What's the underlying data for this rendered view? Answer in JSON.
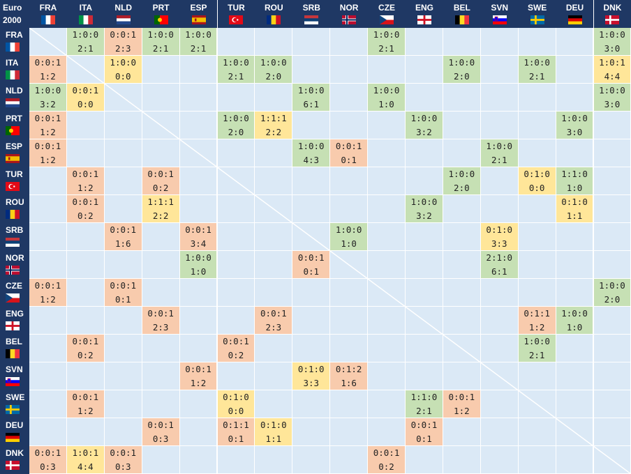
{
  "corner": {
    "line1": "Euro",
    "line2": "2000"
  },
  "teams": [
    {
      "code": "FRA",
      "flag": "fra-flag"
    },
    {
      "code": "ITA",
      "flag": "ita-flag"
    },
    {
      "code": "NLD",
      "flag": "nld-flag"
    },
    {
      "code": "PRT",
      "flag": "prt-flag"
    },
    {
      "code": "ESP",
      "flag": "esp-flag"
    },
    {
      "code": "TUR",
      "flag": "tur-flag"
    },
    {
      "code": "ROU",
      "flag": "rou-flag"
    },
    {
      "code": "SRB",
      "flag": "srb-flag"
    },
    {
      "code": "NOR",
      "flag": "nor-flag"
    },
    {
      "code": "CZE",
      "flag": "cze-flag"
    },
    {
      "code": "ENG",
      "flag": "eng-flag"
    },
    {
      "code": "BEL",
      "flag": "bel-flag"
    },
    {
      "code": "SVN",
      "flag": "svn-flag"
    },
    {
      "code": "SWE",
      "flag": "swe-flag"
    },
    {
      "code": "DEU",
      "flag": "deu-flag"
    },
    {
      "code": "DNK",
      "flag": "dnk-flag"
    }
  ],
  "colors": {
    "header": "#1f3864",
    "empty": "#dbe9f6",
    "win": "#c6e0b4",
    "loss": "#f8cbad",
    "draw": "#ffe699"
  },
  "results": [
    {
      "r": 0,
      "c": 1,
      "rec": "1:0:0",
      "score": "2:1",
      "t": "win"
    },
    {
      "r": 0,
      "c": 2,
      "rec": "0:0:1",
      "score": "2:3",
      "t": "loss"
    },
    {
      "r": 0,
      "c": 3,
      "rec": "1:0:0",
      "score": "2:1",
      "t": "win"
    },
    {
      "r": 0,
      "c": 4,
      "rec": "1:0:0",
      "score": "2:1",
      "t": "win"
    },
    {
      "r": 0,
      "c": 9,
      "rec": "1:0:0",
      "score": "2:1",
      "t": "win"
    },
    {
      "r": 0,
      "c": 15,
      "rec": "1:0:0",
      "score": "3:0",
      "t": "win"
    },
    {
      "r": 1,
      "c": 0,
      "rec": "0:0:1",
      "score": "1:2",
      "t": "loss"
    },
    {
      "r": 1,
      "c": 2,
      "rec": "1:0:0",
      "score": "0:0",
      "t": "draw"
    },
    {
      "r": 1,
      "c": 5,
      "rec": "1:0:0",
      "score": "2:1",
      "t": "win"
    },
    {
      "r": 1,
      "c": 6,
      "rec": "1:0:0",
      "score": "2:0",
      "t": "win"
    },
    {
      "r": 1,
      "c": 11,
      "rec": "1:0:0",
      "score": "2:0",
      "t": "win"
    },
    {
      "r": 1,
      "c": 13,
      "rec": "1:0:0",
      "score": "2:1",
      "t": "win"
    },
    {
      "r": 1,
      "c": 15,
      "rec": "1:0:1",
      "score": "4:4",
      "t": "draw"
    },
    {
      "r": 2,
      "c": 0,
      "rec": "1:0:0",
      "score": "3:2",
      "t": "win"
    },
    {
      "r": 2,
      "c": 1,
      "rec": "0:0:1",
      "score": "0:0",
      "t": "draw"
    },
    {
      "r": 2,
      "c": 7,
      "rec": "1:0:0",
      "score": "6:1",
      "t": "win"
    },
    {
      "r": 2,
      "c": 9,
      "rec": "1:0:0",
      "score": "1:0",
      "t": "win"
    },
    {
      "r": 2,
      "c": 15,
      "rec": "1:0:0",
      "score": "3:0",
      "t": "win"
    },
    {
      "r": 3,
      "c": 0,
      "rec": "0:0:1",
      "score": "1:2",
      "t": "loss"
    },
    {
      "r": 3,
      "c": 5,
      "rec": "1:0:0",
      "score": "2:0",
      "t": "win"
    },
    {
      "r": 3,
      "c": 6,
      "rec": "1:1:1",
      "score": "2:2",
      "t": "draw"
    },
    {
      "r": 3,
      "c": 10,
      "rec": "1:0:0",
      "score": "3:2",
      "t": "win"
    },
    {
      "r": 3,
      "c": 14,
      "rec": "1:0:0",
      "score": "3:0",
      "t": "win"
    },
    {
      "r": 4,
      "c": 0,
      "rec": "0:0:1",
      "score": "1:2",
      "t": "loss"
    },
    {
      "r": 4,
      "c": 7,
      "rec": "1:0:0",
      "score": "4:3",
      "t": "win"
    },
    {
      "r": 4,
      "c": 8,
      "rec": "0:0:1",
      "score": "0:1",
      "t": "loss"
    },
    {
      "r": 4,
      "c": 12,
      "rec": "1:0:0",
      "score": "2:1",
      "t": "win"
    },
    {
      "r": 5,
      "c": 1,
      "rec": "0:0:1",
      "score": "1:2",
      "t": "loss"
    },
    {
      "r": 5,
      "c": 3,
      "rec": "0:0:1",
      "score": "0:2",
      "t": "loss"
    },
    {
      "r": 5,
      "c": 11,
      "rec": "1:0:0",
      "score": "2:0",
      "t": "win"
    },
    {
      "r": 5,
      "c": 13,
      "rec": "0:1:0",
      "score": "0:0",
      "t": "draw"
    },
    {
      "r": 5,
      "c": 14,
      "rec": "1:1:0",
      "score": "1:0",
      "t": "win"
    },
    {
      "r": 6,
      "c": 1,
      "rec": "0:0:1",
      "score": "0:2",
      "t": "loss"
    },
    {
      "r": 6,
      "c": 3,
      "rec": "1:1:1",
      "score": "2:2",
      "t": "draw"
    },
    {
      "r": 6,
      "c": 10,
      "rec": "1:0:0",
      "score": "3:2",
      "t": "win"
    },
    {
      "r": 6,
      "c": 14,
      "rec": "0:1:0",
      "score": "1:1",
      "t": "draw"
    },
    {
      "r": 7,
      "c": 2,
      "rec": "0:0:1",
      "score": "1:6",
      "t": "loss"
    },
    {
      "r": 7,
      "c": 4,
      "rec": "0:0:1",
      "score": "3:4",
      "t": "loss"
    },
    {
      "r": 7,
      "c": 8,
      "rec": "1:0:0",
      "score": "1:0",
      "t": "win"
    },
    {
      "r": 7,
      "c": 12,
      "rec": "0:1:0",
      "score": "3:3",
      "t": "draw"
    },
    {
      "r": 8,
      "c": 4,
      "rec": "1:0:0",
      "score": "1:0",
      "t": "win"
    },
    {
      "r": 8,
      "c": 7,
      "rec": "0:0:1",
      "score": "0:1",
      "t": "loss"
    },
    {
      "r": 8,
      "c": 12,
      "rec": "2:1:0",
      "score": "6:1",
      "t": "win"
    },
    {
      "r": 9,
      "c": 0,
      "rec": "0:0:1",
      "score": "1:2",
      "t": "loss"
    },
    {
      "r": 9,
      "c": 2,
      "rec": "0:0:1",
      "score": "0:1",
      "t": "loss"
    },
    {
      "r": 9,
      "c": 15,
      "rec": "1:0:0",
      "score": "2:0",
      "t": "win"
    },
    {
      "r": 10,
      "c": 3,
      "rec": "0:0:1",
      "score": "2:3",
      "t": "loss"
    },
    {
      "r": 10,
      "c": 6,
      "rec": "0:0:1",
      "score": "2:3",
      "t": "loss"
    },
    {
      "r": 10,
      "c": 13,
      "rec": "0:1:1",
      "score": "1:2",
      "t": "loss"
    },
    {
      "r": 10,
      "c": 14,
      "rec": "1:0:0",
      "score": "1:0",
      "t": "win"
    },
    {
      "r": 11,
      "c": 1,
      "rec": "0:0:1",
      "score": "0:2",
      "t": "loss"
    },
    {
      "r": 11,
      "c": 5,
      "rec": "0:0:1",
      "score": "0:2",
      "t": "loss"
    },
    {
      "r": 11,
      "c": 13,
      "rec": "1:0:0",
      "score": "2:1",
      "t": "win"
    },
    {
      "r": 12,
      "c": 4,
      "rec": "0:0:1",
      "score": "1:2",
      "t": "loss"
    },
    {
      "r": 12,
      "c": 7,
      "rec": "0:1:0",
      "score": "3:3",
      "t": "draw"
    },
    {
      "r": 12,
      "c": 8,
      "rec": "0:1:2",
      "score": "1:6",
      "t": "loss"
    },
    {
      "r": 13,
      "c": 1,
      "rec": "0:0:1",
      "score": "1:2",
      "t": "loss"
    },
    {
      "r": 13,
      "c": 5,
      "rec": "0:1:0",
      "score": "0:0",
      "t": "draw"
    },
    {
      "r": 13,
      "c": 10,
      "rec": "1:1:0",
      "score": "2:1",
      "t": "win"
    },
    {
      "r": 13,
      "c": 11,
      "rec": "0:0:1",
      "score": "1:2",
      "t": "loss"
    },
    {
      "r": 14,
      "c": 3,
      "rec": "0:0:1",
      "score": "0:3",
      "t": "loss"
    },
    {
      "r": 14,
      "c": 5,
      "rec": "0:1:1",
      "score": "0:1",
      "t": "loss"
    },
    {
      "r": 14,
      "c": 6,
      "rec": "0:1:0",
      "score": "1:1",
      "t": "draw"
    },
    {
      "r": 14,
      "c": 10,
      "rec": "0:0:1",
      "score": "0:1",
      "t": "loss"
    },
    {
      "r": 15,
      "c": 0,
      "rec": "0:0:1",
      "score": "0:3",
      "t": "loss"
    },
    {
      "r": 15,
      "c": 1,
      "rec": "1:0:1",
      "score": "4:4",
      "t": "draw"
    },
    {
      "r": 15,
      "c": 2,
      "rec": "0:0:1",
      "score": "0:3",
      "t": "loss"
    },
    {
      "r": 15,
      "c": 9,
      "rec": "0:0:1",
      "score": "0:2",
      "t": "loss"
    }
  ]
}
